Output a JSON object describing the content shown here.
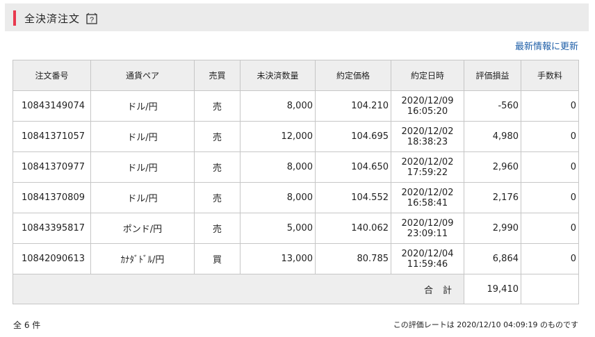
{
  "header": {
    "title": "全決済注文"
  },
  "links": {
    "refresh": "最新情報に更新"
  },
  "table": {
    "columns": [
      "注文番号",
      "通貨ペア",
      "売買",
      "未決済数量",
      "約定価格",
      "約定日時",
      "評価損益",
      "手数料"
    ],
    "rows": [
      {
        "id": "10843149074",
        "pair": "ドル/円",
        "side": "売",
        "qty": "8,000",
        "price": "104.210",
        "date": "2020/12/09",
        "time": "16:05:20",
        "pnl": "-560",
        "fee": "0"
      },
      {
        "id": "10841371057",
        "pair": "ドル/円",
        "side": "売",
        "qty": "12,000",
        "price": "104.695",
        "date": "2020/12/02",
        "time": "18:38:23",
        "pnl": "4,980",
        "fee": "0"
      },
      {
        "id": "10841370977",
        "pair": "ドル/円",
        "side": "売",
        "qty": "8,000",
        "price": "104.650",
        "date": "2020/12/02",
        "time": "17:59:22",
        "pnl": "2,960",
        "fee": "0"
      },
      {
        "id": "10841370809",
        "pair": "ドル/円",
        "side": "売",
        "qty": "8,000",
        "price": "104.552",
        "date": "2020/12/02",
        "time": "16:58:41",
        "pnl": "2,176",
        "fee": "0"
      },
      {
        "id": "10843395817",
        "pair": "ポンド/円",
        "side": "売",
        "qty": "5,000",
        "price": "140.062",
        "date": "2020/12/09",
        "time": "23:09:11",
        "pnl": "2,990",
        "fee": "0"
      },
      {
        "id": "10842090613",
        "pair": "ｶﾅﾀﾞﾄﾞﾙ/円",
        "side": "買",
        "qty": "13,000",
        "price": "80.785",
        "date": "2020/12/04",
        "time": "11:59:46",
        "pnl": "6,864",
        "fee": "0"
      }
    ],
    "total_label": "合計",
    "total_value": "19,410"
  },
  "footer": {
    "count": "全 6 件",
    "rate_note": "この評価レートは 2020/12/10 04:09:19 のものです"
  },
  "colors": {
    "accent": "#e83a4f",
    "sell": "#1a6fc0",
    "buy": "#e0334a",
    "link": "#1f5fa8"
  }
}
